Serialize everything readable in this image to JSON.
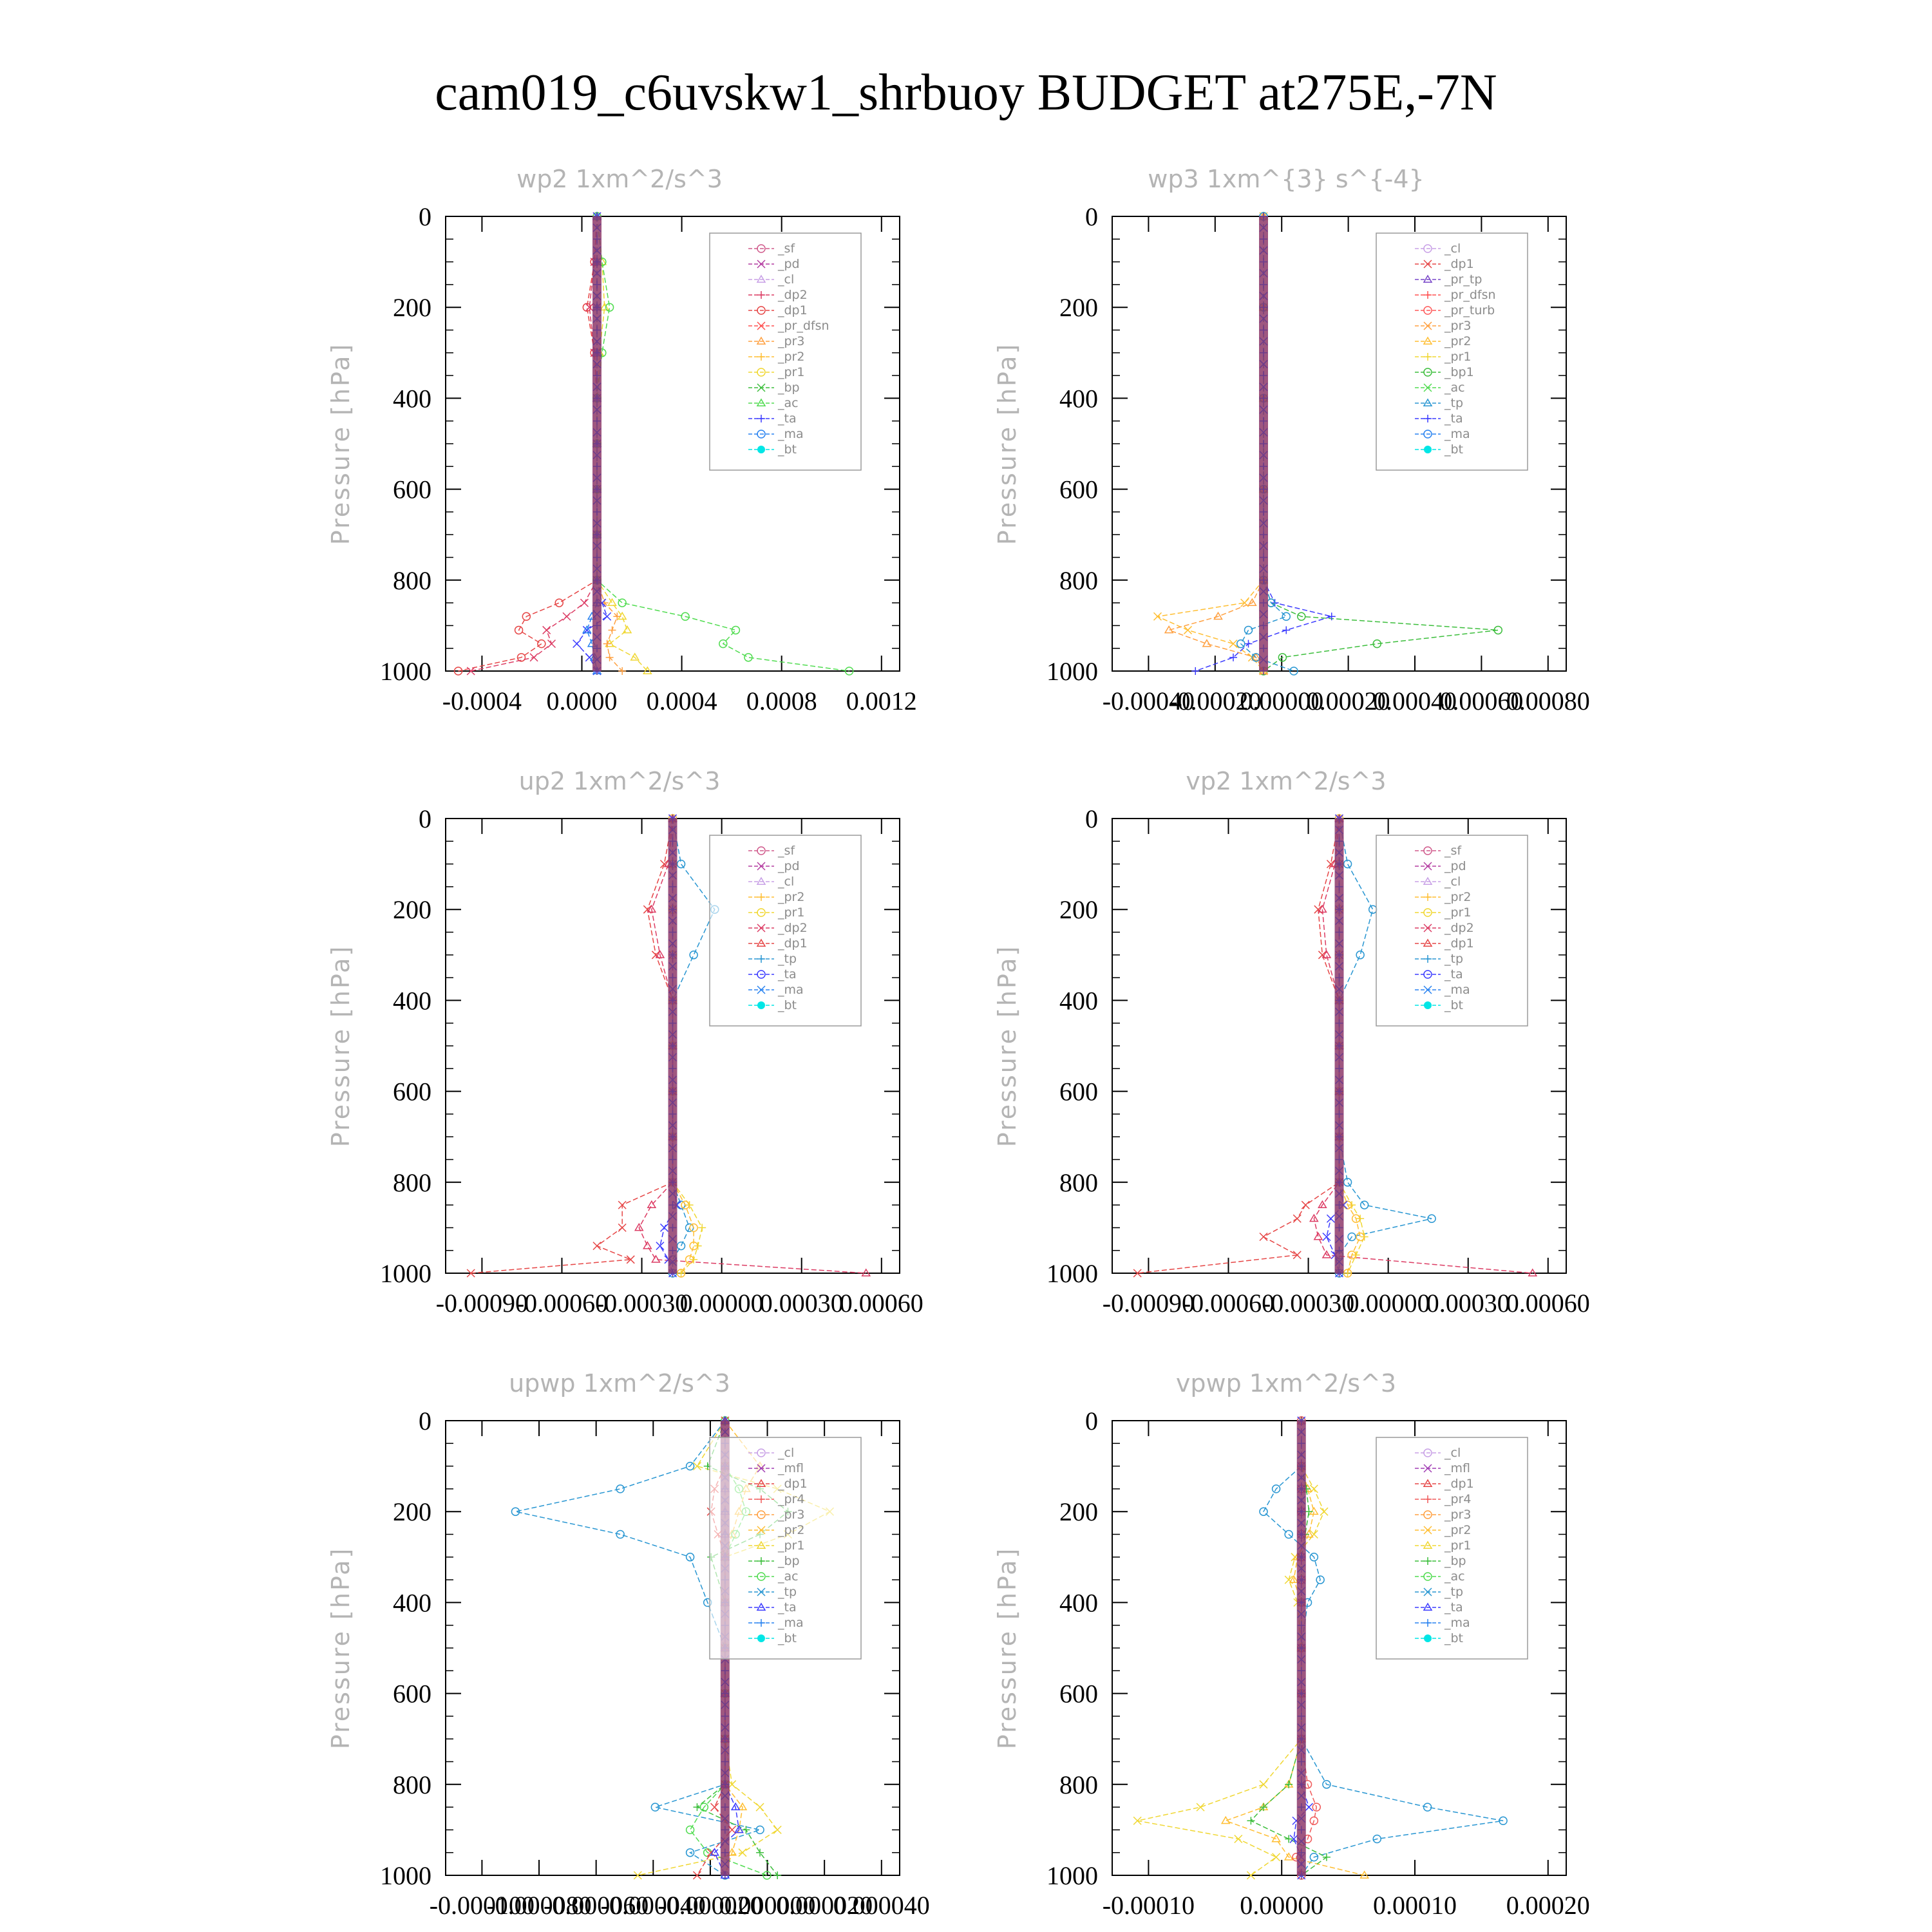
{
  "page_title": "cam019_c6uvskw1_shrbuoy  BUDGET at275E,-7N",
  "colors": {
    "_sf": "#d05a8c",
    "_pd": "#b43ca0",
    "_cl": "#c8a0e6",
    "_mfl": "#a03cb4",
    "_dp2": "#dc3c64",
    "_dp1": "#e64646",
    "_pr_dfsn": "#ff5050",
    "_pr_tp": "#7846c8",
    "_pr_turb": "#ff5a5a",
    "_pr4": "#f05a5a",
    "_pr3": "#ffa040",
    "_pr2": "#ffbe32",
    "_pr1": "#f0d732",
    "_bp": "#3cbe3c",
    "_bp1": "#3cbe3c",
    "_ac": "#50dc50",
    "_tp": "#2896d2",
    "_ta": "#3c3cff",
    "_ma": "#2882f0",
    "_bt": "#00e6e6"
  },
  "chart_data": [
    {
      "type": "line",
      "title": "wp2  1xm^2/s^3",
      "ylabel": "Pressure [hPa]",
      "ylim": [
        1000,
        0
      ],
      "y_ticks": [
        "0",
        "200",
        "400",
        "600",
        "800",
        "1000"
      ],
      "xlim": [
        -0.0006,
        0.0012
      ],
      "x_ticks": [
        "-0.0004",
        "0.0000",
        "0.0004",
        "0.0008",
        "0.0012"
      ],
      "legend": [
        "_sf",
        "_pd",
        "_cl",
        "_dp2",
        "_dp1",
        "_pr_dfsn",
        "_pr3",
        "_pr2",
        "_pr1",
        "_bp",
        "_ac",
        "_ta",
        "_ma",
        "_bt"
      ],
      "y": [
        0,
        100,
        200,
        300,
        400,
        500,
        600,
        700,
        800,
        850,
        880,
        910,
        940,
        970,
        1000
      ],
      "series": [
        {
          "name": "_dp1",
          "values": [
            0,
            -1e-05,
            -4e-05,
            -1e-05,
            0,
            0,
            0,
            0,
            0,
            -0.00015,
            -0.00028,
            -0.00031,
            -0.00022,
            -0.0003,
            -0.00055
          ]
        },
        {
          "name": "_dp2",
          "values": [
            0,
            -1e-05,
            -3e-05,
            -1e-05,
            0,
            0,
            0,
            0,
            0,
            -5e-05,
            -0.00012,
            -0.0002,
            -0.00018,
            -0.00025,
            -0.0005
          ]
        },
        {
          "name": "_pr1",
          "values": [
            0,
            2e-05,
            3e-05,
            1e-05,
            0,
            0,
            0,
            0,
            0,
            6e-05,
            0.0001,
            0.00012,
            5e-05,
            0.00015,
            0.0002
          ]
        },
        {
          "name": "_pr3",
          "values": [
            0,
            0,
            0,
            0,
            0,
            0,
            0,
            0,
            0,
            3e-05,
            8e-05,
            6e-05,
            4e-05,
            5e-05,
            0.0001
          ]
        },
        {
          "name": "_ac",
          "values": [
            0,
            2e-05,
            5e-05,
            2e-05,
            0,
            0,
            0,
            0,
            0,
            0.0001,
            0.00035,
            0.00055,
            0.0005,
            0.0006,
            0.001
          ]
        },
        {
          "name": "_ta",
          "values": [
            0,
            0,
            0,
            0,
            0,
            0,
            0,
            0,
            0,
            2e-05,
            4e-05,
            -4e-05,
            -8e-05,
            -3e-05,
            0
          ]
        },
        {
          "name": "_ma",
          "values": [
            0,
            0,
            0,
            0,
            0,
            0,
            0,
            0,
            0,
            0,
            -2e-05,
            -4e-05,
            -2e-05,
            -1e-05,
            0
          ]
        }
      ]
    },
    {
      "type": "line",
      "title": "wp3  1xm^{3} s^{-4}",
      "ylabel": "Pressure [hPa]",
      "ylim": [
        1000,
        0
      ],
      "y_ticks": [
        "0",
        "200",
        "400",
        "600",
        "800",
        "1000"
      ],
      "xlim": [
        -0.0004,
        0.0008
      ],
      "x_ticks": [
        "-0.00040",
        "-0.00020",
        "0.00000",
        "0.00020",
        "0.00040",
        "0.00060",
        "0.00080"
      ],
      "legend": [
        "_cl",
        "_dp1",
        "_pr_tp",
        "_pr_dfsn",
        "_pr_turb",
        "_pr3",
        "_pr2",
        "_pr1",
        "_bp1",
        "_ac",
        "_tp",
        "_ta",
        "_ma",
        "_bt"
      ],
      "y": [
        0,
        200,
        400,
        600,
        800,
        850,
        880,
        910,
        940,
        970,
        1000
      ],
      "series": [
        {
          "name": "_bp1",
          "values": [
            0,
            0,
            0,
            0,
            0,
            2e-05,
            0.0001,
            0.00062,
            0.0003,
            5e-05,
            0
          ]
        },
        {
          "name": "_pr2",
          "values": [
            0,
            0,
            0,
            0,
            0,
            -5e-05,
            -0.00028,
            -0.0002,
            -8e-05,
            -3e-05,
            0
          ]
        },
        {
          "name": "_pr3",
          "values": [
            0,
            0,
            0,
            0,
            0,
            -3e-05,
            -0.00012,
            -0.00025,
            -0.00015,
            -2e-05,
            0
          ]
        },
        {
          "name": "_ta",
          "values": [
            0,
            0,
            0,
            0,
            0,
            3e-05,
            0.00018,
            6e-05,
            -4e-05,
            -8e-05,
            -0.00018
          ]
        },
        {
          "name": "_tp",
          "values": [
            0,
            0,
            0,
            0,
            0,
            2e-05,
            6e-05,
            -4e-05,
            -6e-05,
            -2e-05,
            8e-05
          ]
        }
      ]
    },
    {
      "type": "line",
      "title": "up2  1xm^2/s^3",
      "ylabel": "Pressure [hPa]",
      "ylim": [
        1000,
        0
      ],
      "y_ticks": [
        "0",
        "200",
        "400",
        "600",
        "800",
        "1000"
      ],
      "xlim": [
        -0.00054,
        0.00054
      ],
      "x_ticks": [
        "-0.00090",
        "-0.00060",
        "-0.00030",
        "0.00000",
        "0.00030",
        "0.00060"
      ],
      "legend": [
        "_sf",
        "_pd",
        "_cl",
        "_pr2",
        "_pr1",
        "_dp2",
        "_dp1",
        "_tp",
        "_ta",
        "_ma",
        "_bt"
      ],
      "y": [
        0,
        100,
        200,
        300,
        400,
        500,
        600,
        700,
        800,
        850,
        900,
        940,
        970,
        1000
      ],
      "series": [
        {
          "name": "_tp",
          "values": [
            0,
            2e-05,
            0.0001,
            5e-05,
            0,
            0,
            0,
            0,
            0,
            2e-05,
            4e-05,
            2e-05,
            0,
            0
          ]
        },
        {
          "name": "_dp1",
          "values": [
            0,
            -2e-05,
            -6e-05,
            -4e-05,
            0,
            0,
            0,
            0,
            0,
            -0.00012,
            -0.00012,
            -0.00018,
            -0.0001,
            -0.00048
          ]
        },
        {
          "name": "_dp2",
          "values": [
            0,
            -1e-05,
            -5e-05,
            -3e-05,
            0,
            0,
            0,
            0,
            0,
            -5e-05,
            -8e-05,
            -6e-05,
            -4e-05,
            0.00046
          ]
        },
        {
          "name": "_pr1",
          "values": [
            0,
            0,
            0,
            0,
            0,
            0,
            0,
            0,
            0,
            4e-05,
            7e-05,
            6e-05,
            5e-05,
            2e-05
          ]
        },
        {
          "name": "_pr2",
          "values": [
            0,
            0,
            0,
            0,
            0,
            0,
            0,
            0,
            0,
            3e-05,
            5e-05,
            5e-05,
            4e-05,
            2e-05
          ]
        },
        {
          "name": "_ta",
          "values": [
            0,
            0,
            0,
            0,
            0,
            0,
            0,
            0,
            0,
            1e-05,
            -2e-05,
            -3e-05,
            -1e-05,
            0
          ]
        }
      ]
    },
    {
      "type": "line",
      "title": "vp2  1xm^2/s^3",
      "ylabel": "Pressure [hPa]",
      "ylim": [
        1000,
        0
      ],
      "y_ticks": [
        "0",
        "200",
        "400",
        "600",
        "800",
        "1000"
      ],
      "xlim": [
        -0.00054,
        0.00054
      ],
      "x_ticks": [
        "-0.00090",
        "-0.00060",
        "-0.00030",
        "0.00000",
        "0.00030",
        "0.00060"
      ],
      "legend": [
        "_sf",
        "_pd",
        "_cl",
        "_pr2",
        "_pr1",
        "_dp2",
        "_dp1",
        "_tp",
        "_ta",
        "_ma",
        "_bt"
      ],
      "y": [
        0,
        100,
        200,
        300,
        400,
        500,
        600,
        700,
        800,
        850,
        880,
        920,
        960,
        1000
      ],
      "series": [
        {
          "name": "_tp",
          "values": [
            0,
            2e-05,
            8e-05,
            5e-05,
            0,
            0,
            0,
            0,
            2e-05,
            6e-05,
            0.00022,
            3e-05,
            0,
            0
          ]
        },
        {
          "name": "_dp1",
          "values": [
            0,
            -2e-05,
            -5e-05,
            -4e-05,
            0,
            0,
            0,
            0,
            0,
            -8e-05,
            -0.0001,
            -0.00018,
            -0.0001,
            -0.00048
          ]
        },
        {
          "name": "_dp2",
          "values": [
            0,
            -1e-05,
            -4e-05,
            -3e-05,
            0,
            0,
            0,
            0,
            0,
            -4e-05,
            -6e-05,
            -5e-05,
            -3e-05,
            0.00046
          ]
        },
        {
          "name": "_pr1",
          "values": [
            0,
            0,
            0,
            0,
            0,
            0,
            0,
            0,
            0,
            3e-05,
            5e-05,
            6e-05,
            4e-05,
            2e-05
          ]
        },
        {
          "name": "_pr2",
          "values": [
            0,
            0,
            0,
            0,
            0,
            0,
            0,
            0,
            0,
            2e-05,
            4e-05,
            5e-05,
            3e-05,
            2e-05
          ]
        },
        {
          "name": "_ta",
          "values": [
            0,
            0,
            0,
            0,
            0,
            0,
            0,
            0,
            0,
            1e-05,
            -2e-05,
            -3e-05,
            -1e-05,
            0
          ]
        }
      ]
    },
    {
      "type": "line",
      "title": "upwp  1xm^2/s^3",
      "ylabel": "Pressure [hPa]",
      "ylim": [
        1000,
        0
      ],
      "y_ticks": [
        "0",
        "200",
        "400",
        "600",
        "800",
        "1000"
      ],
      "xlim": [
        -8e-05,
        5e-05
      ],
      "x_ticks": [
        "-0.000100",
        "-0.000080",
        "-0.000060",
        "-0.000040",
        "-0.000020",
        "0.000000",
        "0.000020",
        "0.000040"
      ],
      "legend": [
        "_cl",
        "_mfl",
        "_dp1",
        "_pr4",
        "_pr3",
        "_pr2",
        "_pr1",
        "_bp",
        "_ac",
        "_tp",
        "_ta",
        "_ma",
        "_bt"
      ],
      "y": [
        0,
        100,
        150,
        200,
        250,
        300,
        400,
        500,
        600,
        700,
        800,
        850,
        900,
        950,
        1000
      ],
      "series": [
        {
          "name": "_tp",
          "values": [
            0,
            -1e-05,
            -3e-05,
            -6e-05,
            -3e-05,
            -1e-05,
            -5e-06,
            0,
            0,
            0,
            0,
            -2e-05,
            1e-05,
            -1e-05,
            0
          ]
        },
        {
          "name": "_pr1",
          "values": [
            0,
            -8e-06,
            1.5e-05,
            3e-05,
            1.8e-05,
            0,
            0,
            0,
            0,
            0,
            2e-06,
            1e-05,
            1.5e-05,
            5e-06,
            -2.5e-05
          ]
        },
        {
          "name": "_pr2",
          "values": [
            0,
            1e-05,
            6e-06,
            4e-06,
            2e-06,
            0,
            0,
            0,
            0,
            0,
            0,
            5e-06,
            4e-06,
            2e-06,
            0
          ]
        },
        {
          "name": "_bp",
          "values": [
            0,
            -5e-06,
            1e-05,
            1.8e-05,
            1e-05,
            -4e-06,
            0,
            0,
            0,
            0,
            0,
            -8e-06,
            6e-06,
            1e-05,
            1.5e-05
          ]
        },
        {
          "name": "_ac",
          "values": [
            0,
            0,
            4e-06,
            6e-06,
            3e-06,
            0,
            0,
            0,
            0,
            0,
            0,
            -6e-06,
            -1e-05,
            -5e-06,
            1.2e-05
          ]
        },
        {
          "name": "_dp1",
          "values": [
            0,
            0,
            -3e-06,
            -4e-06,
            -2e-06,
            0,
            0,
            0,
            0,
            0,
            0,
            -3e-06,
            2e-06,
            -4e-06,
            -8e-06
          ]
        },
        {
          "name": "_ta",
          "values": [
            0,
            0,
            0,
            0,
            0,
            0,
            0,
            0,
            0,
            0,
            0,
            3e-06,
            4e-06,
            -3e-06,
            0
          ]
        }
      ]
    },
    {
      "type": "line",
      "title": "vpwp  1xm^2/s^3",
      "ylabel": "Pressure [hPa]",
      "ylim": [
        1000,
        0
      ],
      "y_ticks": [
        "0",
        "200",
        "400",
        "600",
        "800",
        "1000"
      ],
      "xlim": [
        -0.00015,
        0.00021
      ],
      "x_ticks": [
        "-0.00010",
        "0.00000",
        "0.00010",
        "0.00020"
      ],
      "legend": [
        "_cl",
        "_mfl",
        "_dp1",
        "_pr4",
        "_pr3",
        "_pr2",
        "_pr1",
        "_bp",
        "_ac",
        "_tp",
        "_ta",
        "_ma",
        "_bt"
      ],
      "y": [
        0,
        100,
        150,
        200,
        250,
        300,
        350,
        400,
        500,
        600,
        700,
        800,
        850,
        880,
        920,
        960,
        1000
      ],
      "series": [
        {
          "name": "_tp",
          "values": [
            0,
            0,
            -2e-05,
            -3e-05,
            -1e-05,
            1e-05,
            1.5e-05,
            5e-06,
            0,
            0,
            0,
            2e-05,
            0.0001,
            0.00016,
            6e-05,
            1e-05,
            0
          ]
        },
        {
          "name": "_pr1",
          "values": [
            0,
            0,
            1e-05,
            1.8e-05,
            1e-05,
            -5e-06,
            -1e-05,
            -3e-06,
            0,
            0,
            0,
            -3e-05,
            -8e-05,
            -0.00013,
            -5e-05,
            -2e-05,
            -4e-05
          ]
        },
        {
          "name": "_pr2",
          "values": [
            0,
            0,
            5e-06,
            1e-05,
            6e-06,
            -3e-06,
            -6e-06,
            0,
            0,
            0,
            0,
            -1e-05,
            -3e-05,
            -6e-05,
            -2e-05,
            -1e-05,
            5e-05
          ]
        },
        {
          "name": "_bp",
          "values": [
            0,
            0,
            4e-06,
            6e-06,
            3e-06,
            0,
            0,
            0,
            0,
            0,
            0,
            -1e-05,
            -3e-05,
            -4e-05,
            -1e-05,
            2e-05,
            0
          ]
        },
        {
          "name": "_pr4",
          "values": [
            0,
            0,
            0,
            0,
            0,
            0,
            0,
            0,
            0,
            0,
            0,
            5e-06,
            1.2e-05,
            1e-05,
            5e-06,
            -4e-06,
            0
          ]
        },
        {
          "name": "_ta",
          "values": [
            0,
            0,
            0,
            0,
            0,
            0,
            0,
            0,
            0,
            0,
            0,
            0,
            6e-06,
            -4e-06,
            -6e-06,
            0,
            0
          ]
        }
      ]
    }
  ]
}
